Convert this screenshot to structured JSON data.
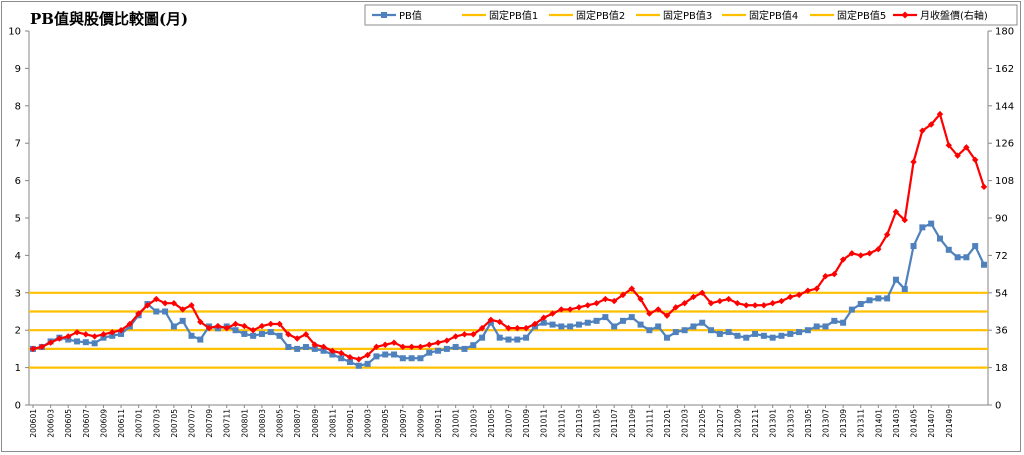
{
  "chart_data": {
    "type": "line",
    "title": "PB值與股價比較圖(月)",
    "y_left_range": [
      0,
      10
    ],
    "y_left_ticks": [
      0,
      1,
      2,
      3,
      4,
      5,
      6,
      7,
      8,
      9,
      10
    ],
    "y_right_range": [
      0,
      180
    ],
    "y_right_ticks": [
      0,
      18,
      36,
      54,
      72,
      90,
      108,
      126,
      144,
      162,
      180
    ],
    "legend_position": "top-right",
    "grid": false,
    "x_labels": [
      "200601",
      "200603",
      "200605",
      "200607",
      "200609",
      "200611",
      "200701",
      "200703",
      "200705",
      "200707",
      "200709",
      "200711",
      "200801",
      "200803",
      "200805",
      "200807",
      "200809",
      "200811",
      "200901",
      "200903",
      "200905",
      "200907",
      "200909",
      "200911",
      "201001",
      "201003",
      "201005",
      "201007",
      "201009",
      "201011",
      "201101",
      "201103",
      "201105",
      "201107",
      "201109",
      "201111",
      "201201",
      "201203",
      "201205",
      "201207",
      "201209",
      "201211",
      "201301",
      "201303",
      "201305",
      "201307",
      "201309",
      "201311",
      "201401",
      "201403",
      "201405",
      "201407",
      "201409"
    ],
    "series": [
      {
        "name": "PB值",
        "axis": "left",
        "color": "#4f81bd",
        "marker": "square",
        "values": [
          1.5,
          1.55,
          1.7,
          1.8,
          1.75,
          1.7,
          1.68,
          1.65,
          1.8,
          1.85,
          1.9,
          2.1,
          2.4,
          2.7,
          2.5,
          2.5,
          2.1,
          2.25,
          1.85,
          1.75,
          2.1,
          2.05,
          2.1,
          2.0,
          1.9,
          1.85,
          1.9,
          1.95,
          1.85,
          1.55,
          1.5,
          1.55,
          1.5,
          1.45,
          1.35,
          1.25,
          1.15,
          1.05,
          1.1,
          1.3,
          1.35,
          1.35,
          1.25,
          1.25,
          1.25,
          1.4,
          1.45,
          1.5,
          1.55,
          1.5,
          1.6,
          1.8,
          2.2,
          1.8,
          1.75,
          1.75,
          1.8,
          2.1,
          2.2,
          2.15,
          2.1,
          2.1,
          2.15,
          2.2,
          2.25,
          2.35,
          2.1,
          2.25,
          2.35,
          2.15,
          2.0,
          2.1,
          1.8,
          1.95,
          2.0,
          2.1,
          2.2,
          2.0,
          1.9,
          1.95,
          1.85,
          1.8,
          1.9,
          1.85,
          1.8,
          1.85,
          1.9,
          1.95,
          2.0,
          2.1,
          2.1,
          2.25,
          2.2,
          2.55,
          2.7,
          2.8,
          2.85,
          2.85,
          3.35,
          3.1,
          4.25,
          4.75,
          4.85,
          4.45,
          4.15,
          3.95,
          3.95,
          4.25,
          3.75
        ]
      },
      {
        "name": "固定PB值1",
        "axis": "left",
        "color": "#ffc000",
        "constant": 1.0
      },
      {
        "name": "固定PB值2",
        "axis": "left",
        "color": "#ffc000",
        "constant": 1.5
      },
      {
        "name": "固定PB值3",
        "axis": "left",
        "color": "#ffc000",
        "constant": 2.0
      },
      {
        "name": "固定PB值4",
        "axis": "left",
        "color": "#ffc000",
        "constant": 2.5
      },
      {
        "name": "固定PB值5",
        "axis": "left",
        "color": "#ffc000",
        "constant": 3.0
      },
      {
        "name": "月收盤價(右軸)",
        "axis": "right",
        "color": "#ff0000",
        "marker": "diamond",
        "values": [
          27,
          28,
          30,
          32,
          33,
          35,
          34,
          33,
          34,
          35,
          36,
          39,
          44,
          48,
          51,
          49,
          49,
          46,
          48,
          40,
          37,
          38,
          37,
          39,
          38,
          36,
          38,
          39,
          39,
          34,
          32,
          34,
          29,
          28,
          26,
          25,
          23,
          22,
          24,
          28,
          29,
          30,
          28,
          28,
          28,
          29,
          30,
          31,
          33,
          34,
          34,
          37,
          41,
          40,
          37,
          37,
          37,
          39,
          42,
          44,
          46,
          46,
          47,
          48,
          49,
          51,
          50,
          53,
          56,
          51,
          44,
          46,
          43,
          47,
          49,
          52,
          54,
          49,
          50,
          51,
          49,
          48,
          48,
          48,
          49,
          50,
          52,
          53,
          55,
          56,
          62,
          63,
          70,
          73,
          72,
          73,
          75,
          82,
          93,
          89,
          117,
          132,
          135,
          140,
          125,
          120,
          124,
          118,
          105
        ]
      }
    ]
  }
}
